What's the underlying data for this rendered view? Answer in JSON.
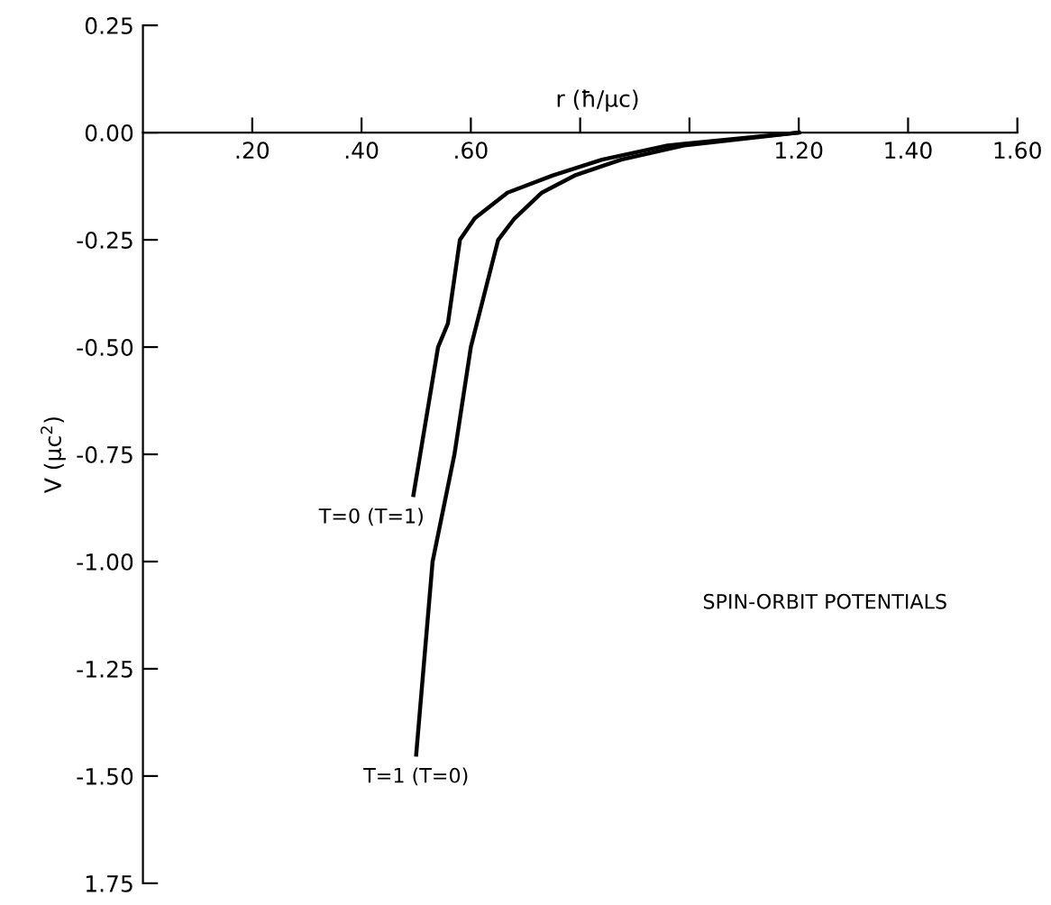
{
  "chart_data": {
    "type": "line",
    "xlabel": "r (ħ/μc)",
    "ylabel": "V (μc$^{2}$)",
    "xlim": [
      0,
      1.6
    ],
    "ylim": [
      -1.75,
      0.25
    ],
    "xticks": [
      {
        "value": 0.2,
        "label": ".20"
      },
      {
        "value": 0.4,
        "label": ".40"
      },
      {
        "value": 0.6,
        "label": ".60"
      },
      {
        "value": 0.8,
        "label": null
      },
      {
        "value": 1.0,
        "label": null
      },
      {
        "value": 1.2,
        "label": "1.20"
      },
      {
        "value": 1.4,
        "label": "1.40"
      },
      {
        "value": 1.6,
        "label": "1.60"
      }
    ],
    "yticks": [
      {
        "value": 0.25,
        "label": "0.25"
      },
      {
        "value": 0,
        "label": "0.00"
      },
      {
        "value": -0.25,
        "label": "-0.25"
      },
      {
        "value": -0.5,
        "label": "-0.50"
      },
      {
        "value": -0.75,
        "label": "-0.75"
      },
      {
        "value": -1.0,
        "label": "-1.00"
      },
      {
        "value": -1.25,
        "label": "-1.25"
      },
      {
        "value": -1.5,
        "label": "-1.50"
      },
      {
        "value": -1.75,
        "label": "1.75"
      }
    ],
    "grid": false,
    "legend": false,
    "marker": "none",
    "line_style": "solid",
    "series": [
      {
        "name": "T=0 (T=1)",
        "color": "#000000",
        "x": [
          0.495,
          0.54,
          0.558,
          0.58,
          0.607,
          0.667,
          0.75,
          0.84,
          0.96,
          1.2
        ],
        "values": [
          -0.845,
          -0.5,
          -0.445,
          -0.25,
          -0.2,
          -0.14,
          -0.1,
          -0.063,
          -0.03,
          0
        ]
      },
      {
        "name": "T=1 (T=0)",
        "color": "#000000",
        "x": [
          0.5,
          0.53,
          0.57,
          0.6,
          0.65,
          0.68,
          0.73,
          0.79,
          0.875,
          0.99,
          1.2
        ],
        "values": [
          -1.45,
          -1.0,
          -0.75,
          -0.5,
          -0.25,
          -0.2,
          -0.14,
          -0.1,
          -0.063,
          -0.03,
          0
        ]
      }
    ],
    "annotations": [
      "SPIN-ORBIT POTENTIALS"
    ]
  }
}
